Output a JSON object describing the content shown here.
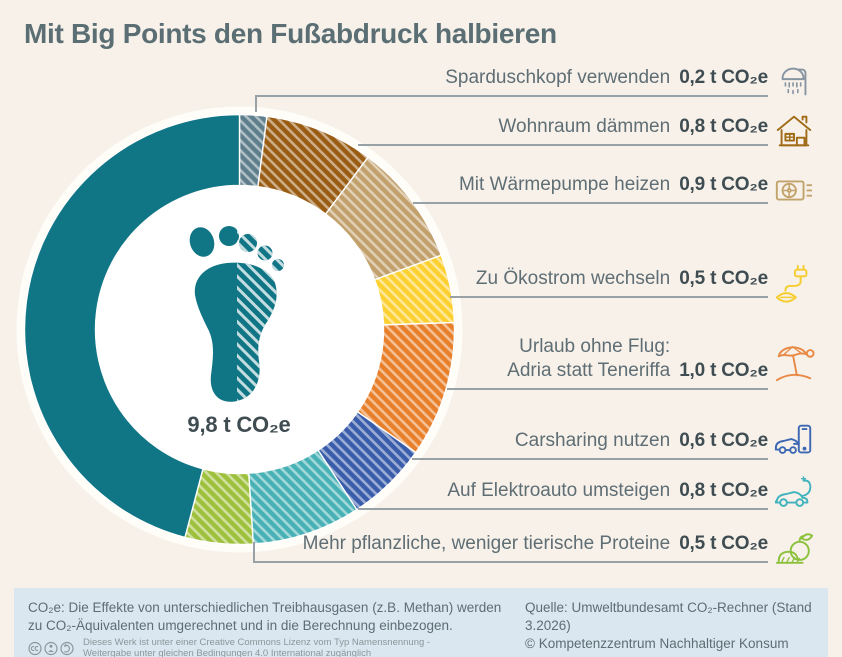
{
  "title": "Mit Big Points den Fußabdruck halbieren",
  "chart_data": {
    "type": "pie",
    "subtype": "donut",
    "title": "Mit Big Points den Fußabdruck halbieren",
    "total_value": 9.8,
    "total_label": "9,8 t CO₂e",
    "unit": "t CO₂e",
    "style_hint": "clockwise from top; saving measures hatched, remaining footprint solid teal; footprint icon in hole",
    "segments": [
      {
        "label": "Sparduschkopf verwenden",
        "value": 0.2,
        "value_label": "0,2 t CO₂e",
        "color": "#5f7e8c",
        "icon_color": "#8795a1",
        "hatched": true,
        "icon": "shower"
      },
      {
        "label": "Wohnraum dämmen",
        "value": 0.8,
        "value_label": "0,8 t CO₂e",
        "color": "#995c12",
        "icon_color": "#a06a16",
        "hatched": true,
        "icon": "house"
      },
      {
        "label": "Mit Wärmepumpe heizen",
        "value": 0.9,
        "value_label": "0,9 t CO₂e",
        "color": "#c2a06b",
        "icon_color": "#c2a36b",
        "hatched": true,
        "icon": "heatpump"
      },
      {
        "label": "Zu Ökostrom wechseln",
        "value": 0.5,
        "value_label": "0,5 t CO₂e",
        "color": "#fdd032",
        "icon_color": "#f6cd2e",
        "hatched": true,
        "icon": "ecopower"
      },
      {
        "label": "Urlaub ohne Flug:",
        "label2": "Adria statt Teneriffa",
        "value": 1.0,
        "value_label": "1,0 t CO₂e",
        "color": "#e8802b",
        "icon_color": "#e88a45",
        "hatched": true,
        "icon": "beach"
      },
      {
        "label": "Carsharing nutzen",
        "value": 0.6,
        "value_label": "0,6 t CO₂e",
        "color": "#3a5dab",
        "icon_color": "#3c67b3",
        "hatched": true,
        "icon": "carsharing"
      },
      {
        "label": "Auf Elektroauto umsteigen",
        "value": 0.8,
        "value_label": "0,8 t CO₂e",
        "color": "#47b1b5",
        "icon_color": "#41b3bc",
        "hatched": true,
        "icon": "ecar"
      },
      {
        "label": "Mehr pflanzliche, weniger tierische Proteine",
        "value": 0.5,
        "value_label": "0,5 t CO₂e",
        "color": "#9ec13d",
        "icon_color": "#8cc13c",
        "hatched": true,
        "icon": "plantfood"
      },
      {
        "label": "",
        "value": 4.5,
        "value_label": "",
        "color": "#107585",
        "icon_color": "",
        "hatched": false,
        "icon": ""
      }
    ]
  },
  "footnote": {
    "line1": "CO₂e: Die Effekte von unterschiedlichen Treibhausgasen (z.B. Methan) werden",
    "line2": "zu CO₂-Äquivalenten umgerechnet und in die Berechnung einbezogen."
  },
  "source": {
    "line1": "Quelle: Umweltbundesamt CO₂-Rechner (Stand 3.2026)",
    "line2": "© Kompetenzzentrum Nachhaltiger Konsum"
  },
  "license": {
    "icons": [
      "cc",
      "by",
      "sa"
    ],
    "line1": "Dieses Werk ist unter einer Creative Commons Lizenz vom Typ Namensnennung -",
    "line2": "Weitergabe unter gleichen Bedingungen 4.0 International zugänglich"
  },
  "colors": {
    "background": "#f7f1ea",
    "footer_bg": "#dbe7f0",
    "title": "#5a6e73",
    "label": "#5f6e74",
    "value": "#3f4d52",
    "leader": "#98a1a5",
    "donut_outline": "#fffdf8",
    "hole": "#ffffff",
    "foot": "#107585"
  }
}
